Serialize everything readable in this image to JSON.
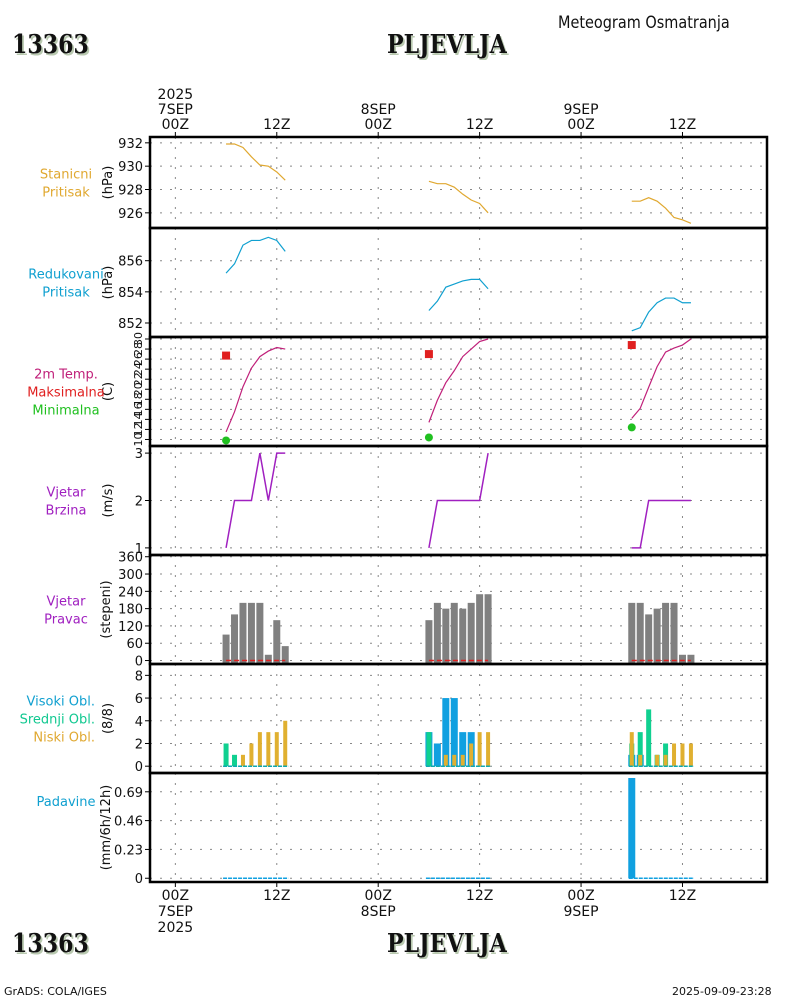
{
  "header": {
    "station_id": "13363",
    "station_name": "PLJEVLJA",
    "product_title": "Meteogram Osmatranja"
  },
  "footer": {
    "station_id": "13363",
    "station_name": "PLJEVLJA",
    "credit": "GrADS: COLA/IGES",
    "timestamp": "2025-09-09-23:28"
  },
  "chart_data": {
    "type": "line",
    "title": "Meteogram Osmatranja - PLJEVLJA (13363)",
    "x_axis": {
      "unit": "hours since 2025-09-07 00Z",
      "range_hours": [
        -3,
        70
      ],
      "ticks": [
        {
          "hour": 0,
          "top": [
            "2025",
            "7SEP",
            "00Z"
          ],
          "bottom": [
            "00Z",
            "7SEP",
            "2025"
          ]
        },
        {
          "hour": 12,
          "top": [
            "12Z"
          ],
          "bottom": [
            "12Z"
          ]
        },
        {
          "hour": 24,
          "top": [
            "8SEP",
            "00Z"
          ],
          "bottom": [
            "00Z",
            "8SEP"
          ]
        },
        {
          "hour": 36,
          "top": [
            "12Z"
          ],
          "bottom": [
            "12Z"
          ]
        },
        {
          "hour": 48,
          "top": [
            "9SEP",
            "00Z"
          ],
          "bottom": [
            "00Z",
            "9SEP"
          ]
        },
        {
          "hour": 60,
          "top": [
            "12Z"
          ],
          "bottom": [
            "12Z"
          ]
        }
      ],
      "grid": true
    },
    "panels": [
      {
        "id": "station-pressure",
        "type": "line",
        "labels": [
          {
            "text": "Stanicni",
            "color": "#e0a830"
          },
          {
            "text": "Pritisak",
            "color": "#e0a830"
          }
        ],
        "ylabel": "(hPa)",
        "ylim": [
          924.7,
          932.5
        ],
        "yticks": [
          926,
          928,
          930,
          932
        ],
        "ytick_labels": [
          "926",
          "928",
          "930",
          "932"
        ],
        "series": [
          {
            "name": "Stanicni Pritisak",
            "color": "#e0a830",
            "segments": [
              {
                "x": [
                  6,
                  7,
                  8,
                  9,
                  10,
                  11,
                  12,
                  13
                ],
                "y": [
                  931.9,
                  931.9,
                  931.6,
                  930.8,
                  930.1,
                  930.0,
                  929.5,
                  928.8
                ]
              },
              {
                "x": [
                  30,
                  31,
                  32,
                  33,
                  34,
                  35,
                  36,
                  37
                ],
                "y": [
                  928.7,
                  928.5,
                  928.5,
                  928.2,
                  927.6,
                  927.1,
                  926.8,
                  926.0
                ]
              },
              {
                "x": [
                  54,
                  55,
                  56,
                  57,
                  58,
                  59,
                  60,
                  61
                ],
                "y": [
                  927.0,
                  927.0,
                  927.3,
                  927.0,
                  926.4,
                  925.6,
                  925.4,
                  925.1
                ]
              }
            ]
          }
        ]
      },
      {
        "id": "reduced-pressure",
        "type": "line",
        "labels": [
          {
            "text": "Redukovani",
            "color": "#10a0d0"
          },
          {
            "text": "Pritisak",
            "color": "#10a0d0"
          }
        ],
        "ylabel": "(hPa)",
        "ylim": [
          851.1,
          858.1
        ],
        "yticks": [
          852,
          854,
          856
        ],
        "ytick_labels": [
          "852",
          "854",
          "856"
        ],
        "series": [
          {
            "name": "Redukovani Pritisak",
            "color": "#10a0d0",
            "segments": [
              {
                "x": [
                  6,
                  7,
                  8,
                  9,
                  10,
                  11,
                  12,
                  13
                ],
                "y": [
                  855.2,
                  855.8,
                  857.0,
                  857.3,
                  857.3,
                  857.5,
                  857.3,
                  856.6
                ]
              },
              {
                "x": [
                  30,
                  31,
                  32,
                  33,
                  34,
                  35,
                  36,
                  37
                ],
                "y": [
                  852.8,
                  853.4,
                  854.3,
                  854.5,
                  854.7,
                  854.8,
                  854.8,
                  854.2
                ]
              },
              {
                "x": [
                  54,
                  55,
                  56,
                  57,
                  58,
                  59,
                  60,
                  61
                ],
                "y": [
                  851.5,
                  851.7,
                  852.7,
                  853.3,
                  853.6,
                  853.6,
                  853.3,
                  853.3
                ]
              }
            ]
          }
        ]
      },
      {
        "id": "temperature",
        "type": "line",
        "labels": [
          {
            "text": "2m Temp.",
            "color": "#c0207a"
          },
          {
            "text": "Maksimalna",
            "color": "#e02020"
          },
          {
            "text": "Minimalna",
            "color": "#20c020"
          }
        ],
        "ylabel": "(C)",
        "ylim": [
          8.7,
          30.4
        ],
        "yticks": [
          10,
          12,
          14,
          16,
          18,
          20,
          22,
          24,
          26,
          28,
          30
        ],
        "ytick_labels": [
          "10",
          "12",
          "14",
          "16",
          "18",
          "20",
          "22",
          "24",
          "26",
          "28",
          "30"
        ],
        "series": [
          {
            "name": "2m Temp.",
            "color": "#c0207a",
            "segments": [
              {
                "x": [
                  6,
                  7,
                  8,
                  9,
                  10,
                  11,
                  12,
                  13
                ],
                "y": [
                  11.5,
                  15.5,
                  20.5,
                  24.2,
                  26.5,
                  27.6,
                  28.3,
                  28.0
                ]
              },
              {
                "x": [
                  30,
                  31,
                  32,
                  33,
                  34,
                  35,
                  36,
                  37
                ],
                "y": [
                  13.4,
                  17.8,
                  21.3,
                  23.7,
                  26.5,
                  28.0,
                  29.5,
                  30.0
                ]
              },
              {
                "x": [
                  54,
                  55,
                  56,
                  57,
                  58,
                  59,
                  60,
                  61
                ],
                "y": [
                  14.2,
                  16.2,
                  20.4,
                  24.5,
                  27.4,
                  28.2,
                  28.8,
                  30.0
                ]
              }
            ]
          },
          {
            "name": "Maksimalna",
            "color": "#e02020",
            "marker": "square",
            "points": [
              {
                "x": 6,
                "y": 26.7
              },
              {
                "x": 30,
                "y": 27.0
              },
              {
                "x": 54,
                "y": 28.8
              }
            ]
          },
          {
            "name": "Minimalna",
            "color": "#20c020",
            "marker": "circle",
            "points": [
              {
                "x": 6,
                "y": 9.8
              },
              {
                "x": 30,
                "y": 10.4
              },
              {
                "x": 54,
                "y": 12.4
              }
            ]
          }
        ]
      },
      {
        "id": "wind-speed",
        "type": "line",
        "labels": [
          {
            "text": "Vjetar",
            "color": "#a020c0"
          },
          {
            "text": "Brzina",
            "color": "#a020c0"
          }
        ],
        "ylabel": "(m/s)",
        "ylim": [
          0.85,
          3.15
        ],
        "yticks": [
          1,
          2,
          3
        ],
        "ytick_labels": [
          "1",
          "2",
          "3"
        ],
        "series": [
          {
            "name": "Vjetar Brzina",
            "color": "#a020c0",
            "segments": [
              {
                "x": [
                  6,
                  7,
                  8,
                  9,
                  10,
                  11,
                  12,
                  13
                ],
                "y": [
                  1,
                  2,
                  2,
                  2,
                  3,
                  2,
                  3,
                  3
                ]
              },
              {
                "x": [
                  30,
                  31,
                  32,
                  33,
                  34,
                  35,
                  36,
                  37
                ],
                "y": [
                  1,
                  2,
                  2,
                  2,
                  2,
                  2,
                  2,
                  3
                ]
              },
              {
                "x": [
                  54,
                  55,
                  56,
                  57,
                  58,
                  59,
                  60,
                  61
                ],
                "y": [
                  1,
                  1,
                  2,
                  2,
                  2,
                  2,
                  2,
                  2
                ]
              }
            ]
          }
        ]
      },
      {
        "id": "wind-direction",
        "type": "bar",
        "labels": [
          {
            "text": "Vjetar",
            "color": "#a020c0"
          },
          {
            "text": "Pravac",
            "color": "#a020c0"
          }
        ],
        "ylabel": "(stepeni)",
        "ylim": [
          -12,
          366
        ],
        "yticks": [
          0,
          60,
          120,
          180,
          240,
          300,
          360
        ],
        "ytick_labels": [
          "0",
          "60",
          "120",
          "180",
          "240",
          "300",
          "360"
        ],
        "series": [
          {
            "name": "Vjetar Pravac",
            "color": "#808080",
            "segments": [
              {
                "x": [
                  6,
                  7,
                  8,
                  9,
                  10,
                  11,
                  12,
                  13
                ],
                "y": [
                  90,
                  160,
                  200,
                  200,
                  200,
                  20,
                  140,
                  50
                ]
              },
              {
                "x": [
                  30,
                  31,
                  32,
                  33,
                  34,
                  35,
                  36,
                  37
                ],
                "y": [
                  140,
                  200,
                  180,
                  200,
                  180,
                  200,
                  230,
                  230
                ]
              },
              {
                "x": [
                  54,
                  55,
                  56,
                  57,
                  58,
                  59,
                  60,
                  61
                ],
                "y": [
                  200,
                  200,
                  160,
                  180,
                  200,
                  200,
                  20,
                  20
                ]
              }
            ]
          },
          {
            "name": "calm-baseline",
            "color": "#e02020",
            "dashed": true,
            "segments": [
              {
                "x": [
                  6,
                  13
                ],
                "y": [
                  0,
                  0
                ]
              },
              {
                "x": [
                  30,
                  37
                ],
                "y": [
                  0,
                  0
                ]
              },
              {
                "x": [
                  54,
                  61
                ],
                "y": [
                  0,
                  0
                ]
              }
            ]
          }
        ]
      },
      {
        "id": "cloud-cover",
        "type": "bar",
        "labels": [
          {
            "text": "Visoki Obl.",
            "color": "#10a0d0"
          },
          {
            "text": "Srednji Obl.",
            "color": "#10c890"
          },
          {
            "text": "Niski Obl.",
            "color": "#e0a830"
          }
        ],
        "ylabel": "(8/8)",
        "ylim": [
          -0.6,
          9
        ],
        "yticks": [
          0,
          2,
          4,
          6,
          8
        ],
        "ytick_labels": [
          "0",
          "2",
          "4",
          "6",
          "8"
        ],
        "x": [
          6,
          7,
          8,
          9,
          10,
          11,
          12,
          13,
          30,
          31,
          32,
          33,
          34,
          35,
          36,
          37,
          54,
          55,
          56,
          57,
          58,
          59,
          60,
          61
        ],
        "series": [
          {
            "name": "Visoki Obl.",
            "color": "#10a0e0",
            "values": [
              0,
              0,
              0,
              0,
              0,
              0,
              0,
              0,
              3,
              2,
              6,
              6,
              3,
              3,
              0,
              0,
              1,
              1,
              0,
              0,
              0,
              0,
              0,
              0
            ]
          },
          {
            "name": "Srednji Obl.",
            "color": "#10d090",
            "values": [
              2,
              1,
              0,
              0,
              0,
              0,
              0,
              0,
              3,
              0,
              0,
              0,
              0,
              0,
              0,
              0,
              2,
              3,
              5,
              1,
              2,
              0,
              0,
              0
            ]
          },
          {
            "name": "Niski Obl.",
            "color": "#e0b030",
            "values": [
              0,
              0,
              1,
              2,
              3,
              3,
              3,
              4,
              0,
              0,
              1,
              1,
              1,
              2,
              3,
              3,
              3,
              1,
              0,
              1,
              1,
              2,
              2,
              2
            ]
          }
        ]
      },
      {
        "id": "precipitation",
        "type": "bar",
        "labels": [
          {
            "text": "Padavine",
            "color": "#10a0d0"
          }
        ],
        "ylabel": "(mm/6h/12h)",
        "ylim": [
          -0.03,
          0.84
        ],
        "yticks": [
          0,
          0.23,
          0.46,
          0.69
        ],
        "ytick_labels": [
          "0",
          "0.23",
          "0.46",
          "0.69"
        ],
        "x": [
          6,
          7,
          8,
          9,
          10,
          11,
          12,
          13,
          30,
          31,
          32,
          33,
          34,
          35,
          36,
          37,
          54,
          55,
          56,
          57,
          58,
          59,
          60,
          61
        ],
        "series": [
          {
            "name": "Padavine",
            "color": "#10a0e0",
            "values": [
              0,
              0,
              0,
              0,
              0,
              0,
              0,
              0,
              0,
              0,
              0,
              0,
              0,
              0,
              0,
              0,
              0.8,
              0,
              0,
              0,
              0,
              0,
              0,
              0
            ]
          }
        ]
      }
    ]
  }
}
